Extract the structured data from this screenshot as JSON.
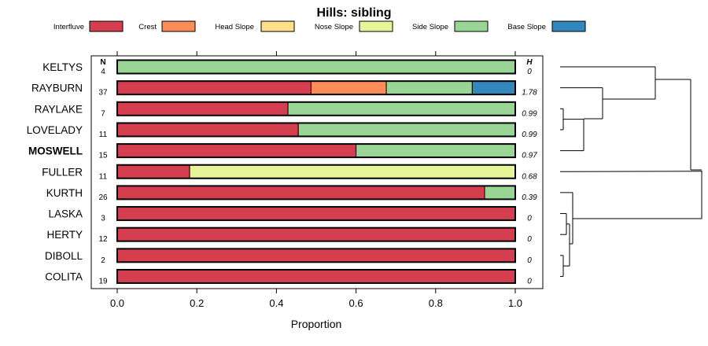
{
  "chart_data": {
    "type": "bar",
    "stacked": true,
    "orientation": "horizontal",
    "title": "Hills: sibling",
    "xlabel": "Proportion",
    "ylabel": "",
    "xlim": [
      0,
      1
    ],
    "x_ticks": [
      "0.0",
      "0.2",
      "0.4",
      "0.6",
      "0.8",
      "1.0"
    ],
    "x_tick_values": [
      0,
      0.2,
      0.4,
      0.6,
      0.8,
      1.0
    ],
    "n_header": "N",
    "h_header": "H",
    "legend_position": "top",
    "legend": [
      {
        "name": "Interfluve",
        "color": "#d53e4f"
      },
      {
        "name": "Crest",
        "color": "#fc8d59"
      },
      {
        "name": "Head Slope",
        "color": "#fee08b"
      },
      {
        "name": "Nose Slope",
        "color": "#e6f598"
      },
      {
        "name": "Side Slope",
        "color": "#99d594"
      },
      {
        "name": "Base Slope",
        "color": "#3288bd"
      }
    ],
    "rows": [
      {
        "name": "KELTYS",
        "bold": false,
        "n": "4",
        "h": "0",
        "segments": [
          {
            "cat": "Side Slope",
            "value": 1.0
          }
        ]
      },
      {
        "name": "RAYBURN",
        "bold": false,
        "n": "37",
        "h": "1.78",
        "segments": [
          {
            "cat": "Interfluve",
            "value": 0.487
          },
          {
            "cat": "Crest",
            "value": 0.189
          },
          {
            "cat": "Side Slope",
            "value": 0.216
          },
          {
            "cat": "Base Slope",
            "value": 0.108
          }
        ]
      },
      {
        "name": "RAYLAKE",
        "bold": false,
        "n": "7",
        "h": "0.99",
        "segments": [
          {
            "cat": "Interfluve",
            "value": 0.429
          },
          {
            "cat": "Side Slope",
            "value": 0.571
          }
        ]
      },
      {
        "name": "LOVELADY",
        "bold": false,
        "n": "11",
        "h": "0.99",
        "segments": [
          {
            "cat": "Interfluve",
            "value": 0.455
          },
          {
            "cat": "Side Slope",
            "value": 0.545
          }
        ]
      },
      {
        "name": "MOSWELL",
        "bold": true,
        "n": "15",
        "h": "0.97",
        "segments": [
          {
            "cat": "Interfluve",
            "value": 0.6
          },
          {
            "cat": "Side Slope",
            "value": 0.4
          }
        ]
      },
      {
        "name": "FULLER",
        "bold": false,
        "n": "11",
        "h": "0.68",
        "segments": [
          {
            "cat": "Interfluve",
            "value": 0.182
          },
          {
            "cat": "Nose Slope",
            "value": 0.818
          }
        ]
      },
      {
        "name": "KURTH",
        "bold": false,
        "n": "26",
        "h": "0.39",
        "segments": [
          {
            "cat": "Interfluve",
            "value": 0.923
          },
          {
            "cat": "Side Slope",
            "value": 0.077
          }
        ]
      },
      {
        "name": "LASKA",
        "bold": false,
        "n": "3",
        "h": "0",
        "segments": [
          {
            "cat": "Interfluve",
            "value": 1.0
          }
        ]
      },
      {
        "name": "HERTY",
        "bold": false,
        "n": "12",
        "h": "0",
        "segments": [
          {
            "cat": "Interfluve",
            "value": 1.0
          }
        ]
      },
      {
        "name": "DIBOLL",
        "bold": false,
        "n": "2",
        "h": "0",
        "segments": [
          {
            "cat": "Interfluve",
            "value": 1.0
          }
        ]
      },
      {
        "name": "COLITA",
        "bold": false,
        "n": "19",
        "h": "0",
        "segments": [
          {
            "cat": "Interfluve",
            "value": 1.0
          }
        ]
      }
    ]
  }
}
